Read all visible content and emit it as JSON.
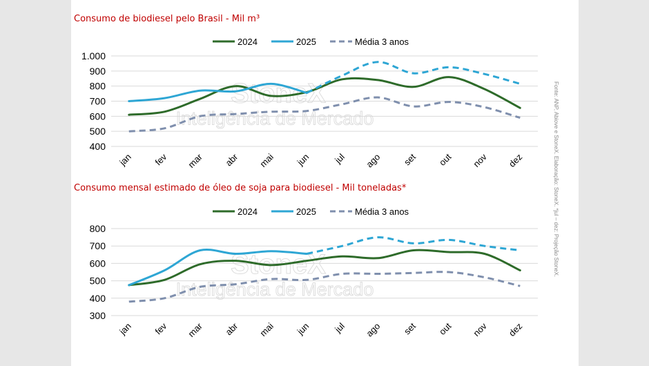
{
  "colors": {
    "s2024": "#2e6b2a",
    "s2025": "#2ea6d4",
    "media": "#7f8fad",
    "title": "#c00000",
    "grid": "#d9d9d9",
    "watermark": "#d9d9d9"
  },
  "watermark": {
    "brand": "StoneX",
    "tagline": "Inteligência de Mercado"
  },
  "source_note": "Fonte: ANP, Abiove e StoneX. Elaboração: StoneX. *jul – dez: Projeção StoneX.",
  "chart_data": [
    {
      "type": "line",
      "title": "Consumo de biodiesel pelo Brasil - Mil m³",
      "categories": [
        "jan",
        "fev",
        "mar",
        "abr",
        "mai",
        "jun",
        "jul",
        "ago",
        "set",
        "out",
        "nov",
        "dez"
      ],
      "ylim": [
        400,
        1000
      ],
      "yticks": [
        400,
        500,
        600,
        700,
        800,
        900,
        1000
      ],
      "ytick_labels": [
        "400",
        "500",
        "600",
        "700",
        "800",
        "900",
        "1.000"
      ],
      "grid": true,
      "legend_position": "top",
      "projection_from_index": 5,
      "series": [
        {
          "name": "2024",
          "style": "solid",
          "values": [
            610,
            630,
            715,
            800,
            735,
            760,
            845,
            840,
            795,
            860,
            780,
            655
          ]
        },
        {
          "name": "2025",
          "style": "solid-then-dashed",
          "values": [
            700,
            720,
            770,
            765,
            815,
            755,
            870,
            960,
            885,
            925,
            880,
            815
          ]
        },
        {
          "name": "Média 3 anos",
          "style": "dashed",
          "values": [
            500,
            520,
            600,
            615,
            630,
            635,
            680,
            725,
            665,
            695,
            660,
            590
          ]
        }
      ]
    },
    {
      "type": "line",
      "title": "Consumo mensal estimado de óleo de soja para biodiesel - Mil toneladas*",
      "categories": [
        "jan",
        "fev",
        "mar",
        "abr",
        "mai",
        "jun",
        "jul",
        "ago",
        "set",
        "out",
        "nov",
        "dez"
      ],
      "ylim": [
        300,
        800
      ],
      "yticks": [
        300,
        400,
        500,
        600,
        700,
        800
      ],
      "ytick_labels": [
        "300",
        "400",
        "500",
        "600",
        "700",
        "800"
      ],
      "grid": true,
      "legend_position": "top",
      "projection_from_index": 5,
      "series": [
        {
          "name": "2024",
          "style": "solid",
          "values": [
            475,
            505,
            595,
            615,
            590,
            615,
            640,
            630,
            675,
            665,
            655,
            560
          ]
        },
        {
          "name": "2025",
          "style": "solid-then-dashed",
          "values": [
            475,
            560,
            675,
            655,
            670,
            655,
            700,
            750,
            715,
            735,
            700,
            675
          ]
        },
        {
          "name": "Média 3 anos",
          "style": "dashed",
          "values": [
            380,
            400,
            465,
            480,
            510,
            505,
            540,
            540,
            545,
            550,
            520,
            470
          ]
        }
      ]
    }
  ]
}
